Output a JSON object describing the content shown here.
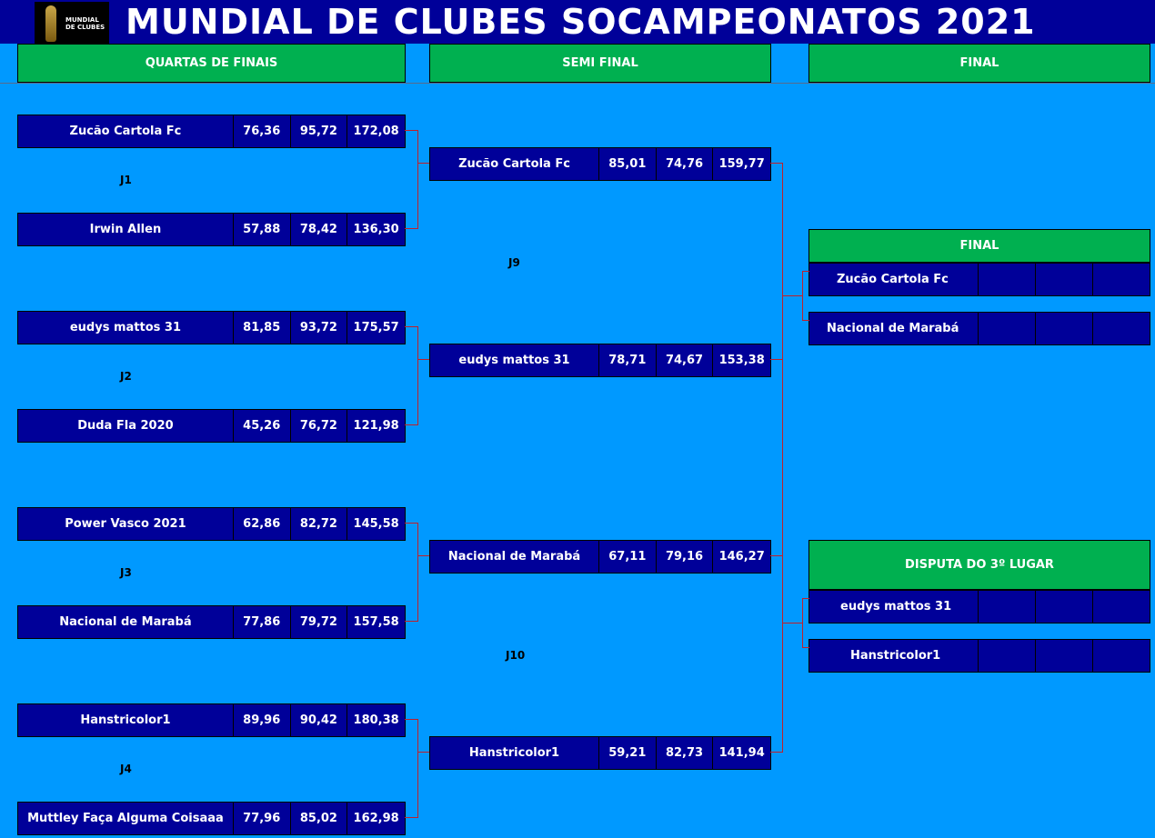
{
  "header": {
    "title": "MUNDIAL DE CLUBES SOCAMPEONATOS  2021",
    "logo_text": "MUNDIAL DE CLUBES"
  },
  "columns": {
    "quarters": "QUARTAS DE FINAIS",
    "semis": "SEMI FINAL",
    "final": "FINAL"
  },
  "quarters": [
    {
      "label": "J1",
      "teams": [
        {
          "name": "Zucão Cartola Fc",
          "s1": "76,36",
          "s2": "95,72",
          "total": "172,08"
        },
        {
          "name": "Irwin Allen",
          "s1": "57,88",
          "s2": "78,42",
          "total": "136,30"
        }
      ]
    },
    {
      "label": "J2",
      "teams": [
        {
          "name": "eudys mattos 31",
          "s1": "81,85",
          "s2": "93,72",
          "total": "175,57"
        },
        {
          "name": "Duda Fla 2020",
          "s1": "45,26",
          "s2": "76,72",
          "total": "121,98"
        }
      ]
    },
    {
      "label": "J3",
      "teams": [
        {
          "name": "Power Vasco 2021",
          "s1": "62,86",
          "s2": "82,72",
          "total": "145,58"
        },
        {
          "name": "Nacional de Marabá",
          "s1": "77,86",
          "s2": "79,72",
          "total": "157,58"
        }
      ]
    },
    {
      "label": "J4",
      "teams": [
        {
          "name": "Hanstricolor1",
          "s1": "89,96",
          "s2": "90,42",
          "total": "180,38"
        },
        {
          "name": "Muttley Faça Alguma Coisaaa",
          "s1": "77,96",
          "s2": "85,02",
          "total": "162,98"
        }
      ]
    }
  ],
  "semis": [
    {
      "label": "J9",
      "teams": [
        {
          "name": "Zucão Cartola Fc",
          "s1": "85,01",
          "s2": "74,76",
          "total": "159,77"
        },
        {
          "name": "eudys mattos 31",
          "s1": "78,71",
          "s2": "74,67",
          "total": "153,38"
        }
      ]
    },
    {
      "label": "J10",
      "teams": [
        {
          "name": "Nacional de Marabá",
          "s1": "67,11",
          "s2": "79,16",
          "total": "146,27"
        },
        {
          "name": "Hanstricolor1",
          "s1": "59,21",
          "s2": "82,73",
          "total": "141,94"
        }
      ]
    }
  ],
  "final": {
    "title": "FINAL",
    "teams": [
      {
        "name": "Zucão Cartola Fc"
      },
      {
        "name": "Nacional de Marabá"
      }
    ]
  },
  "third": {
    "title": "DISPUTA DO 3º LUGAR",
    "teams": [
      {
        "name": "eudys mattos 31"
      },
      {
        "name": "Hanstricolor1"
      }
    ]
  }
}
